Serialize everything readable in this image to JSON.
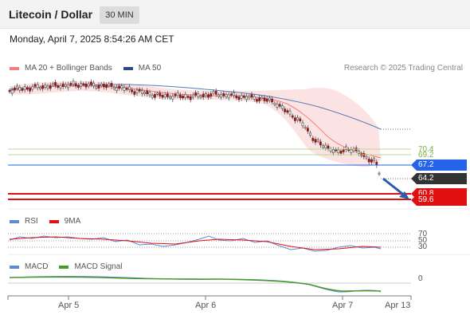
{
  "header": {
    "title": "Litecoin / Dollar",
    "interval": "30 MIN"
  },
  "datetime": "Monday, April 7, 2025 8:54:26 AM CET",
  "legend": {
    "bollinger": "MA 20 + Bollinger Bands",
    "ma50": "MA 50",
    "credit": "Research © 2025 Trading Central",
    "colors": {
      "bollinger": "#f08080",
      "ma50": "#2a4a8a"
    }
  },
  "levels": [
    {
      "value": "70.4",
      "kind": "resistance",
      "color": "#7cb342"
    },
    {
      "value": "69.2",
      "kind": "resistance",
      "color": "#7cb342"
    },
    {
      "value": "67.2",
      "kind": "pivot",
      "color": "#2563eb"
    },
    {
      "value": "64.2",
      "kind": "last-price",
      "color": "#333333"
    },
    {
      "value": "60.8",
      "kind": "support",
      "color": "#e01010"
    },
    {
      "value": "59.6",
      "kind": "support",
      "color": "#e01010"
    }
  ],
  "rsi_panel": {
    "legend_rsi": "RSI",
    "legend_ma": "9MA",
    "levels": [
      "70",
      "50",
      "30"
    ],
    "colors": {
      "rsi": "#5b8ad6",
      "ma": "#e01010"
    }
  },
  "macd_panel": {
    "legend_macd": "MACD",
    "legend_signal": "MACD Signal",
    "zero_label": "0",
    "colors": {
      "macd": "#5b8ad6",
      "signal": "#4a9a2a"
    }
  },
  "x_axis": [
    "Apr 5",
    "Apr 6",
    "Apr 7",
    "Apr 13"
  ]
}
